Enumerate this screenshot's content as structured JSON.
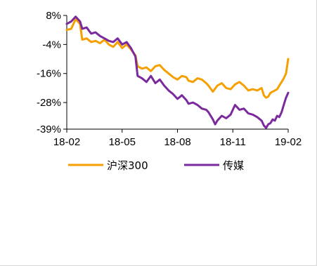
{
  "chart_data": {
    "type": "line",
    "x_labels": [
      "18-02",
      "18-05",
      "18-08",
      "18-11",
      "19-02"
    ],
    "y_ticks": [
      8,
      -4,
      -16,
      -28,
      -39
    ],
    "y_tick_labels": [
      "8%",
      "-4%",
      "-16%",
      "-28%",
      "-39%"
    ],
    "ylim": [
      -39,
      8
    ],
    "grid": false,
    "legend_position": "bottom",
    "series": [
      {
        "name": "沪深300",
        "color": "#F5A000",
        "points": [
          [
            0.0,
            2.0
          ],
          [
            0.02,
            2.5
          ],
          [
            0.04,
            6.5
          ],
          [
            0.06,
            4.5
          ],
          [
            0.07,
            -2.0
          ],
          [
            0.09,
            -1.5
          ],
          [
            0.11,
            -3.0
          ],
          [
            0.13,
            -2.5
          ],
          [
            0.15,
            -3.5
          ],
          [
            0.17,
            -2.0
          ],
          [
            0.19,
            -4.0
          ],
          [
            0.21,
            -5.0
          ],
          [
            0.23,
            -3.0
          ],
          [
            0.25,
            -5.5
          ],
          [
            0.27,
            -4.0
          ],
          [
            0.29,
            -6.0
          ],
          [
            0.31,
            -8.5
          ],
          [
            0.32,
            -13.0
          ],
          [
            0.34,
            -14.0
          ],
          [
            0.36,
            -13.5
          ],
          [
            0.38,
            -15.0
          ],
          [
            0.4,
            -13.0
          ],
          [
            0.42,
            -12.5
          ],
          [
            0.44,
            -14.5
          ],
          [
            0.46,
            -16.0
          ],
          [
            0.48,
            -17.5
          ],
          [
            0.5,
            -18.5
          ],
          [
            0.52,
            -17.0
          ],
          [
            0.54,
            -17.5
          ],
          [
            0.55,
            -19.0
          ],
          [
            0.57,
            -19.5
          ],
          [
            0.59,
            -18.0
          ],
          [
            0.61,
            -18.5
          ],
          [
            0.63,
            -20.0
          ],
          [
            0.64,
            -21.0
          ],
          [
            0.66,
            -23.5
          ],
          [
            0.68,
            -21.0
          ],
          [
            0.7,
            -20.0
          ],
          [
            0.72,
            -22.0
          ],
          [
            0.74,
            -22.5
          ],
          [
            0.76,
            -20.5
          ],
          [
            0.78,
            -19.5
          ],
          [
            0.8,
            -21.0
          ],
          [
            0.82,
            -23.0
          ],
          [
            0.84,
            -22.5
          ],
          [
            0.86,
            -23.0
          ],
          [
            0.88,
            -22.0
          ],
          [
            0.89,
            -25.0
          ],
          [
            0.9,
            -26.0
          ],
          [
            0.91,
            -25.5
          ],
          [
            0.92,
            -24.0
          ],
          [
            0.93,
            -23.5
          ],
          [
            0.94,
            -23.0
          ],
          [
            0.95,
            -22.5
          ],
          [
            0.96,
            -21.0
          ],
          [
            0.97,
            -19.5
          ],
          [
            0.98,
            -18.0
          ],
          [
            0.99,
            -16.0
          ],
          [
            1.0,
            -10.0
          ]
        ]
      },
      {
        "name": "传媒",
        "color": "#7A2A9C",
        "points": [
          [
            0.0,
            4.5
          ],
          [
            0.02,
            5.5
          ],
          [
            0.04,
            7.5
          ],
          [
            0.06,
            5.5
          ],
          [
            0.07,
            2.5
          ],
          [
            0.09,
            3.0
          ],
          [
            0.11,
            0.5
          ],
          [
            0.13,
            1.0
          ],
          [
            0.15,
            -0.5
          ],
          [
            0.17,
            -1.5
          ],
          [
            0.19,
            -2.5
          ],
          [
            0.21,
            -3.0
          ],
          [
            0.23,
            -1.5
          ],
          [
            0.25,
            -4.0
          ],
          [
            0.27,
            -3.0
          ],
          [
            0.29,
            -5.5
          ],
          [
            0.31,
            -9.0
          ],
          [
            0.32,
            -17.0
          ],
          [
            0.34,
            -18.0
          ],
          [
            0.36,
            -19.5
          ],
          [
            0.38,
            -17.0
          ],
          [
            0.4,
            -20.0
          ],
          [
            0.42,
            -18.5
          ],
          [
            0.44,
            -21.0
          ],
          [
            0.46,
            -23.0
          ],
          [
            0.48,
            -24.5
          ],
          [
            0.5,
            -26.5
          ],
          [
            0.52,
            -25.0
          ],
          [
            0.54,
            -27.0
          ],
          [
            0.55,
            -28.5
          ],
          [
            0.57,
            -28.0
          ],
          [
            0.59,
            -29.0
          ],
          [
            0.61,
            -30.5
          ],
          [
            0.63,
            -31.0
          ],
          [
            0.64,
            -32.0
          ],
          [
            0.66,
            -35.0
          ],
          [
            0.67,
            -37.0
          ],
          [
            0.68,
            -35.5
          ],
          [
            0.7,
            -33.5
          ],
          [
            0.72,
            -34.5
          ],
          [
            0.74,
            -33.0
          ],
          [
            0.76,
            -29.0
          ],
          [
            0.78,
            -31.0
          ],
          [
            0.8,
            -30.5
          ],
          [
            0.82,
            -32.5
          ],
          [
            0.84,
            -33.0
          ],
          [
            0.86,
            -34.0
          ],
          [
            0.88,
            -35.5
          ],
          [
            0.89,
            -37.5
          ],
          [
            0.9,
            -38.5
          ],
          [
            0.91,
            -37.0
          ],
          [
            0.92,
            -36.5
          ],
          [
            0.93,
            -35.0
          ],
          [
            0.94,
            -35.5
          ],
          [
            0.95,
            -33.5
          ],
          [
            0.96,
            -34.0
          ],
          [
            0.97,
            -32.0
          ],
          [
            0.98,
            -29.0
          ],
          [
            0.99,
            -26.0
          ],
          [
            1.0,
            -24.0
          ]
        ]
      }
    ]
  }
}
